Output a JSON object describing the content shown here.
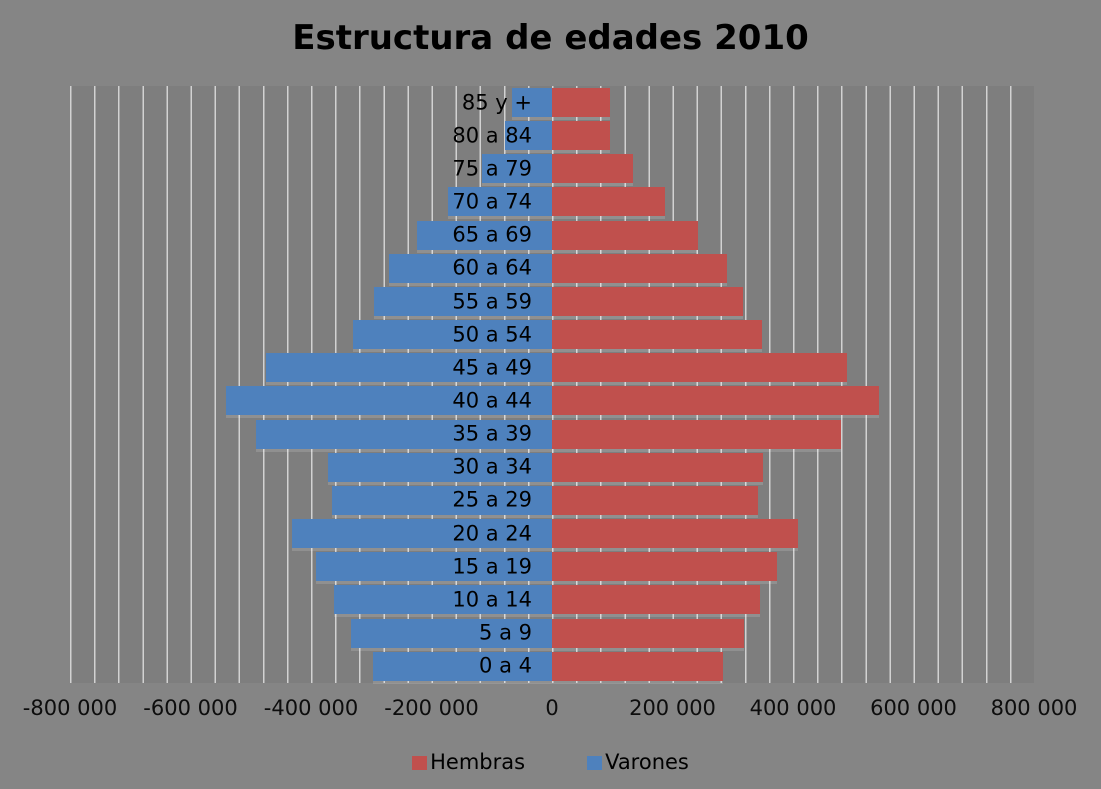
{
  "title": "Estructura de edades 2010",
  "legend": {
    "items": [
      {
        "label": "Hembras",
        "color": "#C0504D"
      },
      {
        "label": "Varones",
        "color": "#4E81BD"
      }
    ]
  },
  "chart_data": {
    "type": "bar",
    "subtype": "population-pyramid",
    "title": "Estructura de edades 2010",
    "orientation": "horizontal",
    "categories": [
      "85 y +",
      "80 a 84",
      "75 a 79",
      "70 a 74",
      "65 a 69",
      "60 a 64",
      "55 a 59",
      "50 a 54",
      "45 a 49",
      "40 a 44",
      "35 a 39",
      "30 a 34",
      "25 a 29",
      "20 a 24",
      "15 a 19",
      "10 a 14",
      "5 a 9",
      "0 a 4"
    ],
    "series": [
      {
        "name": "Varones",
        "side": "left",
        "color": "#4E81BD",
        "values": [
          67000,
          78000,
          117000,
          173000,
          224000,
          270000,
          296000,
          330000,
          475000,
          541000,
          491000,
          371000,
          365000,
          431000,
          391000,
          362000,
          334000,
          297000
        ]
      },
      {
        "name": "Hembras",
        "side": "right",
        "color": "#C0504D",
        "values": [
          97000,
          96000,
          134000,
          188000,
          243000,
          290000,
          317000,
          348000,
          490000,
          543000,
          480000,
          351000,
          342000,
          408000,
          373000,
          345000,
          318000,
          283000
        ]
      }
    ],
    "xlabel": "",
    "ylabel": "",
    "x_axis": {
      "min": -800000,
      "max": 800000,
      "major_unit": 200000,
      "minor_unit": 40000,
      "tick_values": [
        -800000,
        -600000,
        -400000,
        -200000,
        0,
        200000,
        400000,
        600000,
        800000
      ],
      "tick_labels": [
        "-800 000",
        "-600 000",
        "-400 000",
        "-200 000",
        "0",
        "200 000",
        "400 000",
        "600 000",
        "800 000"
      ]
    },
    "grid": true,
    "legend_position": "bottom",
    "colors": {
      "background": "#858585",
      "plot_background": "#7E7E7E",
      "gridline": "#C8C8C8",
      "text": "#000000"
    }
  }
}
